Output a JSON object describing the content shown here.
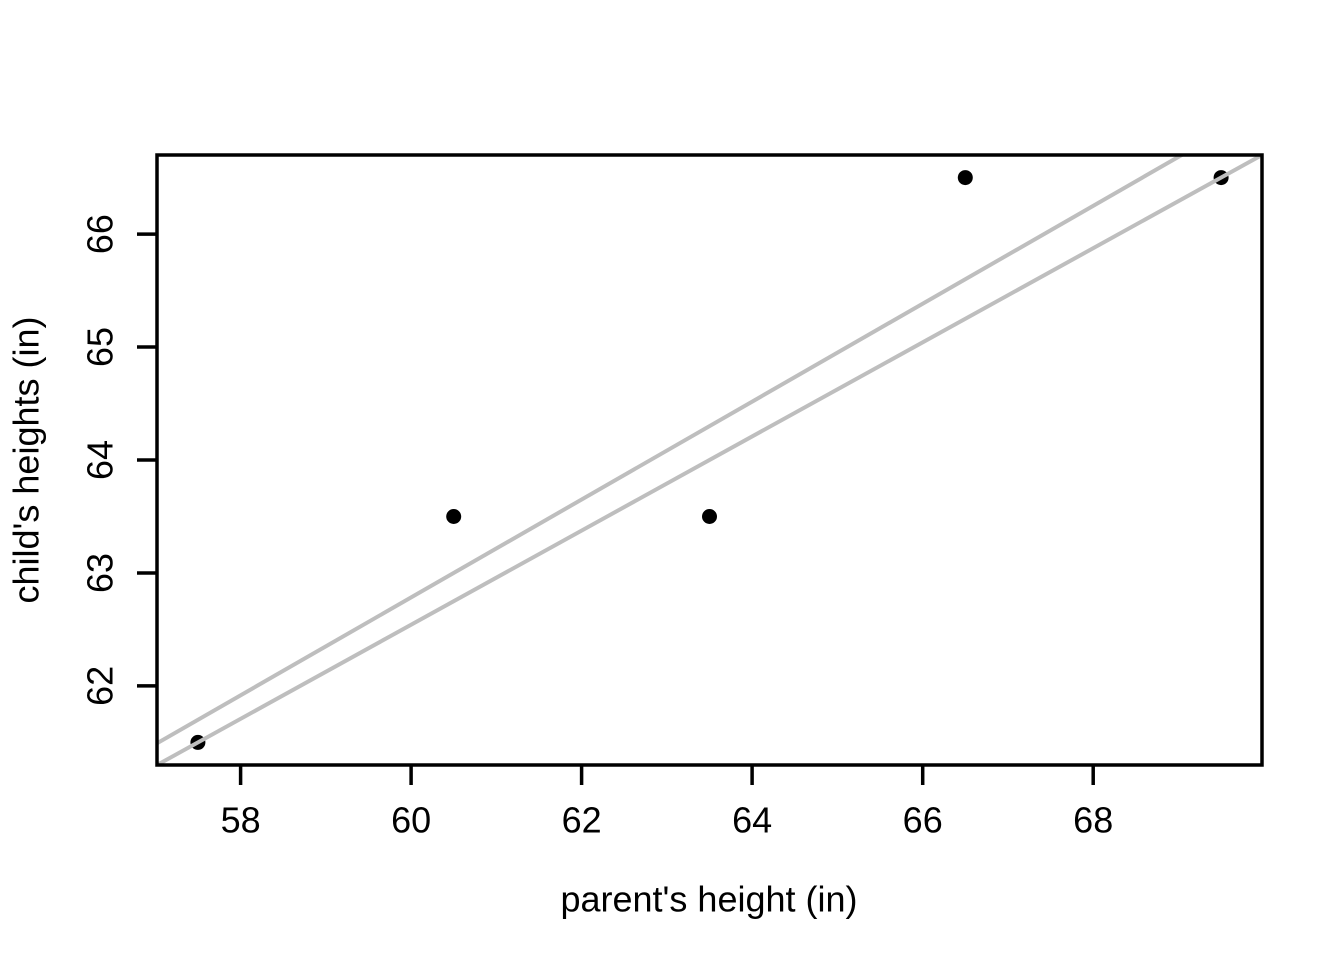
{
  "figure": {
    "background": "#FFFFFF"
  },
  "chart_data": {
    "type": "scatter",
    "title": "",
    "xlabel": "parent's height (in)",
    "ylabel": "child's heights (in)",
    "points": [
      {
        "x": 57.5,
        "y": 61.5
      },
      {
        "x": 60.5,
        "y": 63.5
      },
      {
        "x": 63.5,
        "y": 63.5
      },
      {
        "x": 66.5,
        "y": 66.5
      },
      {
        "x": 69.5,
        "y": 66.5
      }
    ],
    "x_ticks": [
      58,
      60,
      62,
      64,
      66,
      68
    ],
    "y_ticks": [
      62,
      63,
      64,
      65,
      66
    ],
    "xlim": [
      57.02,
      69.98
    ],
    "ylim": [
      61.3,
      66.7
    ],
    "lines": [
      {
        "name": "least-squares-line",
        "slope": 0.433333,
        "intercept": 36.783333,
        "color": "#BEBEBE"
      },
      {
        "name": "extreme-points-line",
        "slope": 0.416667,
        "intercept": 37.541667,
        "color": "#BEBEBE"
      }
    ],
    "point_color": "#000000",
    "axis_color": "#000000",
    "grid": false,
    "legend": false
  }
}
